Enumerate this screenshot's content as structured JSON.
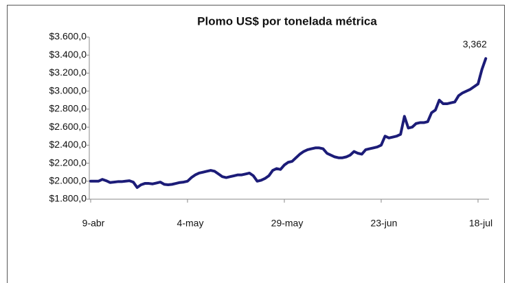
{
  "chart_data": {
    "type": "line",
    "title": "Plomo US$ por tonelada métrica",
    "categories": [
      "9-abr",
      null,
      null,
      null,
      null,
      null,
      null,
      null,
      null,
      null,
      null,
      null,
      null,
      null,
      null,
      null,
      null,
      null,
      null,
      null,
      null,
      null,
      null,
      null,
      null,
      "4-may",
      null,
      null,
      null,
      null,
      null,
      null,
      null,
      null,
      null,
      null,
      null,
      null,
      null,
      null,
      null,
      null,
      null,
      null,
      null,
      null,
      null,
      null,
      null,
      null,
      "29-may",
      null,
      null,
      null,
      null,
      null,
      null,
      null,
      null,
      null,
      null,
      null,
      null,
      null,
      null,
      null,
      null,
      null,
      null,
      null,
      null,
      null,
      null,
      null,
      null,
      "23-jun",
      null,
      null,
      null,
      null,
      null,
      null,
      null,
      null,
      null,
      null,
      null,
      null,
      null,
      null,
      null,
      null,
      null,
      null,
      null,
      null,
      null,
      null,
      null,
      null,
      "18-jul",
      null,
      null
    ],
    "series": [
      {
        "name": "Plomo",
        "color": "#1c1c78",
        "values": [
          2000,
          2000,
          2000,
          2020,
          2005,
          1985,
          1990,
          1995,
          1995,
          2000,
          2005,
          1990,
          1930,
          1960,
          1975,
          1975,
          1970,
          1980,
          1990,
          1965,
          1960,
          1965,
          1975,
          1985,
          1990,
          2000,
          2040,
          2070,
          2090,
          2100,
          2110,
          2120,
          2110,
          2080,
          2050,
          2040,
          2050,
          2060,
          2070,
          2070,
          2080,
          2090,
          2060,
          2000,
          2010,
          2030,
          2060,
          2120,
          2140,
          2130,
          2180,
          2210,
          2220,
          2260,
          2300,
          2330,
          2350,
          2360,
          2370,
          2370,
          2360,
          2310,
          2290,
          2270,
          2260,
          2260,
          2270,
          2290,
          2330,
          2310,
          2300,
          2350,
          2360,
          2370,
          2380,
          2400,
          2500,
          2480,
          2490,
          2500,
          2520,
          2720,
          2590,
          2600,
          2640,
          2650,
          2650,
          2660,
          2760,
          2790,
          2900,
          2860,
          2860,
          2870,
          2880,
          2950,
          2980,
          3000,
          3020,
          3050,
          3080,
          3240,
          3362
        ],
        "value_labels": [
          null,
          null,
          null,
          null,
          null,
          null,
          null,
          null,
          null,
          null,
          null,
          null,
          null,
          null,
          null,
          null,
          null,
          null,
          null,
          null,
          null,
          null,
          null,
          null,
          null,
          null,
          null,
          null,
          null,
          null,
          null,
          null,
          null,
          null,
          null,
          null,
          null,
          null,
          null,
          null,
          null,
          null,
          null,
          null,
          null,
          null,
          null,
          null,
          null,
          null,
          null,
          null,
          null,
          null,
          null,
          null,
          null,
          null,
          null,
          null,
          null,
          null,
          null,
          null,
          null,
          null,
          null,
          null,
          null,
          null,
          null,
          null,
          null,
          null,
          null,
          null,
          null,
          null,
          null,
          null,
          null,
          null,
          null,
          null,
          null,
          null,
          null,
          null,
          null,
          null,
          null,
          null,
          null,
          null,
          null,
          null,
          null,
          null,
          null,
          null,
          null,
          null,
          "3,362"
        ]
      }
    ],
    "ylim": [
      1800,
      3600
    ],
    "yticks": [
      {
        "value": 1800,
        "label": "$1.800,0"
      },
      {
        "value": 2000,
        "label": "$2.000,0"
      },
      {
        "value": 2200,
        "label": "$2.200,0"
      },
      {
        "value": 2400,
        "label": "$2.400,0"
      },
      {
        "value": 2600,
        "label": "$2.600,0"
      },
      {
        "value": 2800,
        "label": "$2.800,0"
      },
      {
        "value": 3000,
        "label": "$3.000,0"
      },
      {
        "value": 3200,
        "label": "$3.200,0"
      },
      {
        "value": 3400,
        "label": "$3.400,0"
      },
      {
        "value": 3600,
        "label": "$3.600,0"
      }
    ],
    "grid": false
  }
}
